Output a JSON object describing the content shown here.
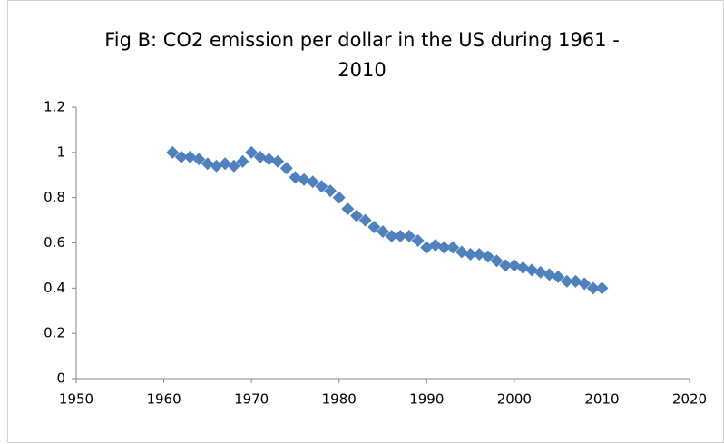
{
  "chart_data": {
    "type": "scatter",
    "title": "Fig B: CO2 emission per dollar in the US during 1961 -\n2010",
    "color": "#4f81bd",
    "grid": false,
    "x": [
      1961,
      1962,
      1963,
      1964,
      1965,
      1966,
      1967,
      1968,
      1969,
      1970,
      1971,
      1972,
      1973,
      1974,
      1975,
      1976,
      1977,
      1978,
      1979,
      1980,
      1981,
      1982,
      1983,
      1984,
      1985,
      1986,
      1987,
      1988,
      1989,
      1990,
      1991,
      1992,
      1993,
      1994,
      1995,
      1996,
      1997,
      1998,
      1999,
      2000,
      2001,
      2002,
      2003,
      2004,
      2005,
      2006,
      2007,
      2008,
      2009,
      2010
    ],
    "values": [
      1.0,
      0.98,
      0.98,
      0.97,
      0.95,
      0.94,
      0.95,
      0.94,
      0.96,
      1.0,
      0.98,
      0.97,
      0.96,
      0.93,
      0.89,
      0.88,
      0.87,
      0.85,
      0.83,
      0.8,
      0.75,
      0.72,
      0.7,
      0.67,
      0.65,
      0.63,
      0.63,
      0.63,
      0.61,
      0.58,
      0.59,
      0.58,
      0.58,
      0.56,
      0.55,
      0.55,
      0.54,
      0.52,
      0.5,
      0.5,
      0.49,
      0.48,
      0.47,
      0.46,
      0.45,
      0.43,
      0.43,
      0.42,
      0.4,
      0.4
    ],
    "xlim": [
      1950,
      2020
    ],
    "xticks": [
      1950,
      1960,
      1970,
      1980,
      1990,
      2000,
      2010,
      2020
    ],
    "ylim": [
      0,
      1.2
    ],
    "yticks": [
      0,
      0.2,
      0.4,
      0.6,
      0.8,
      1,
      1.2
    ]
  }
}
